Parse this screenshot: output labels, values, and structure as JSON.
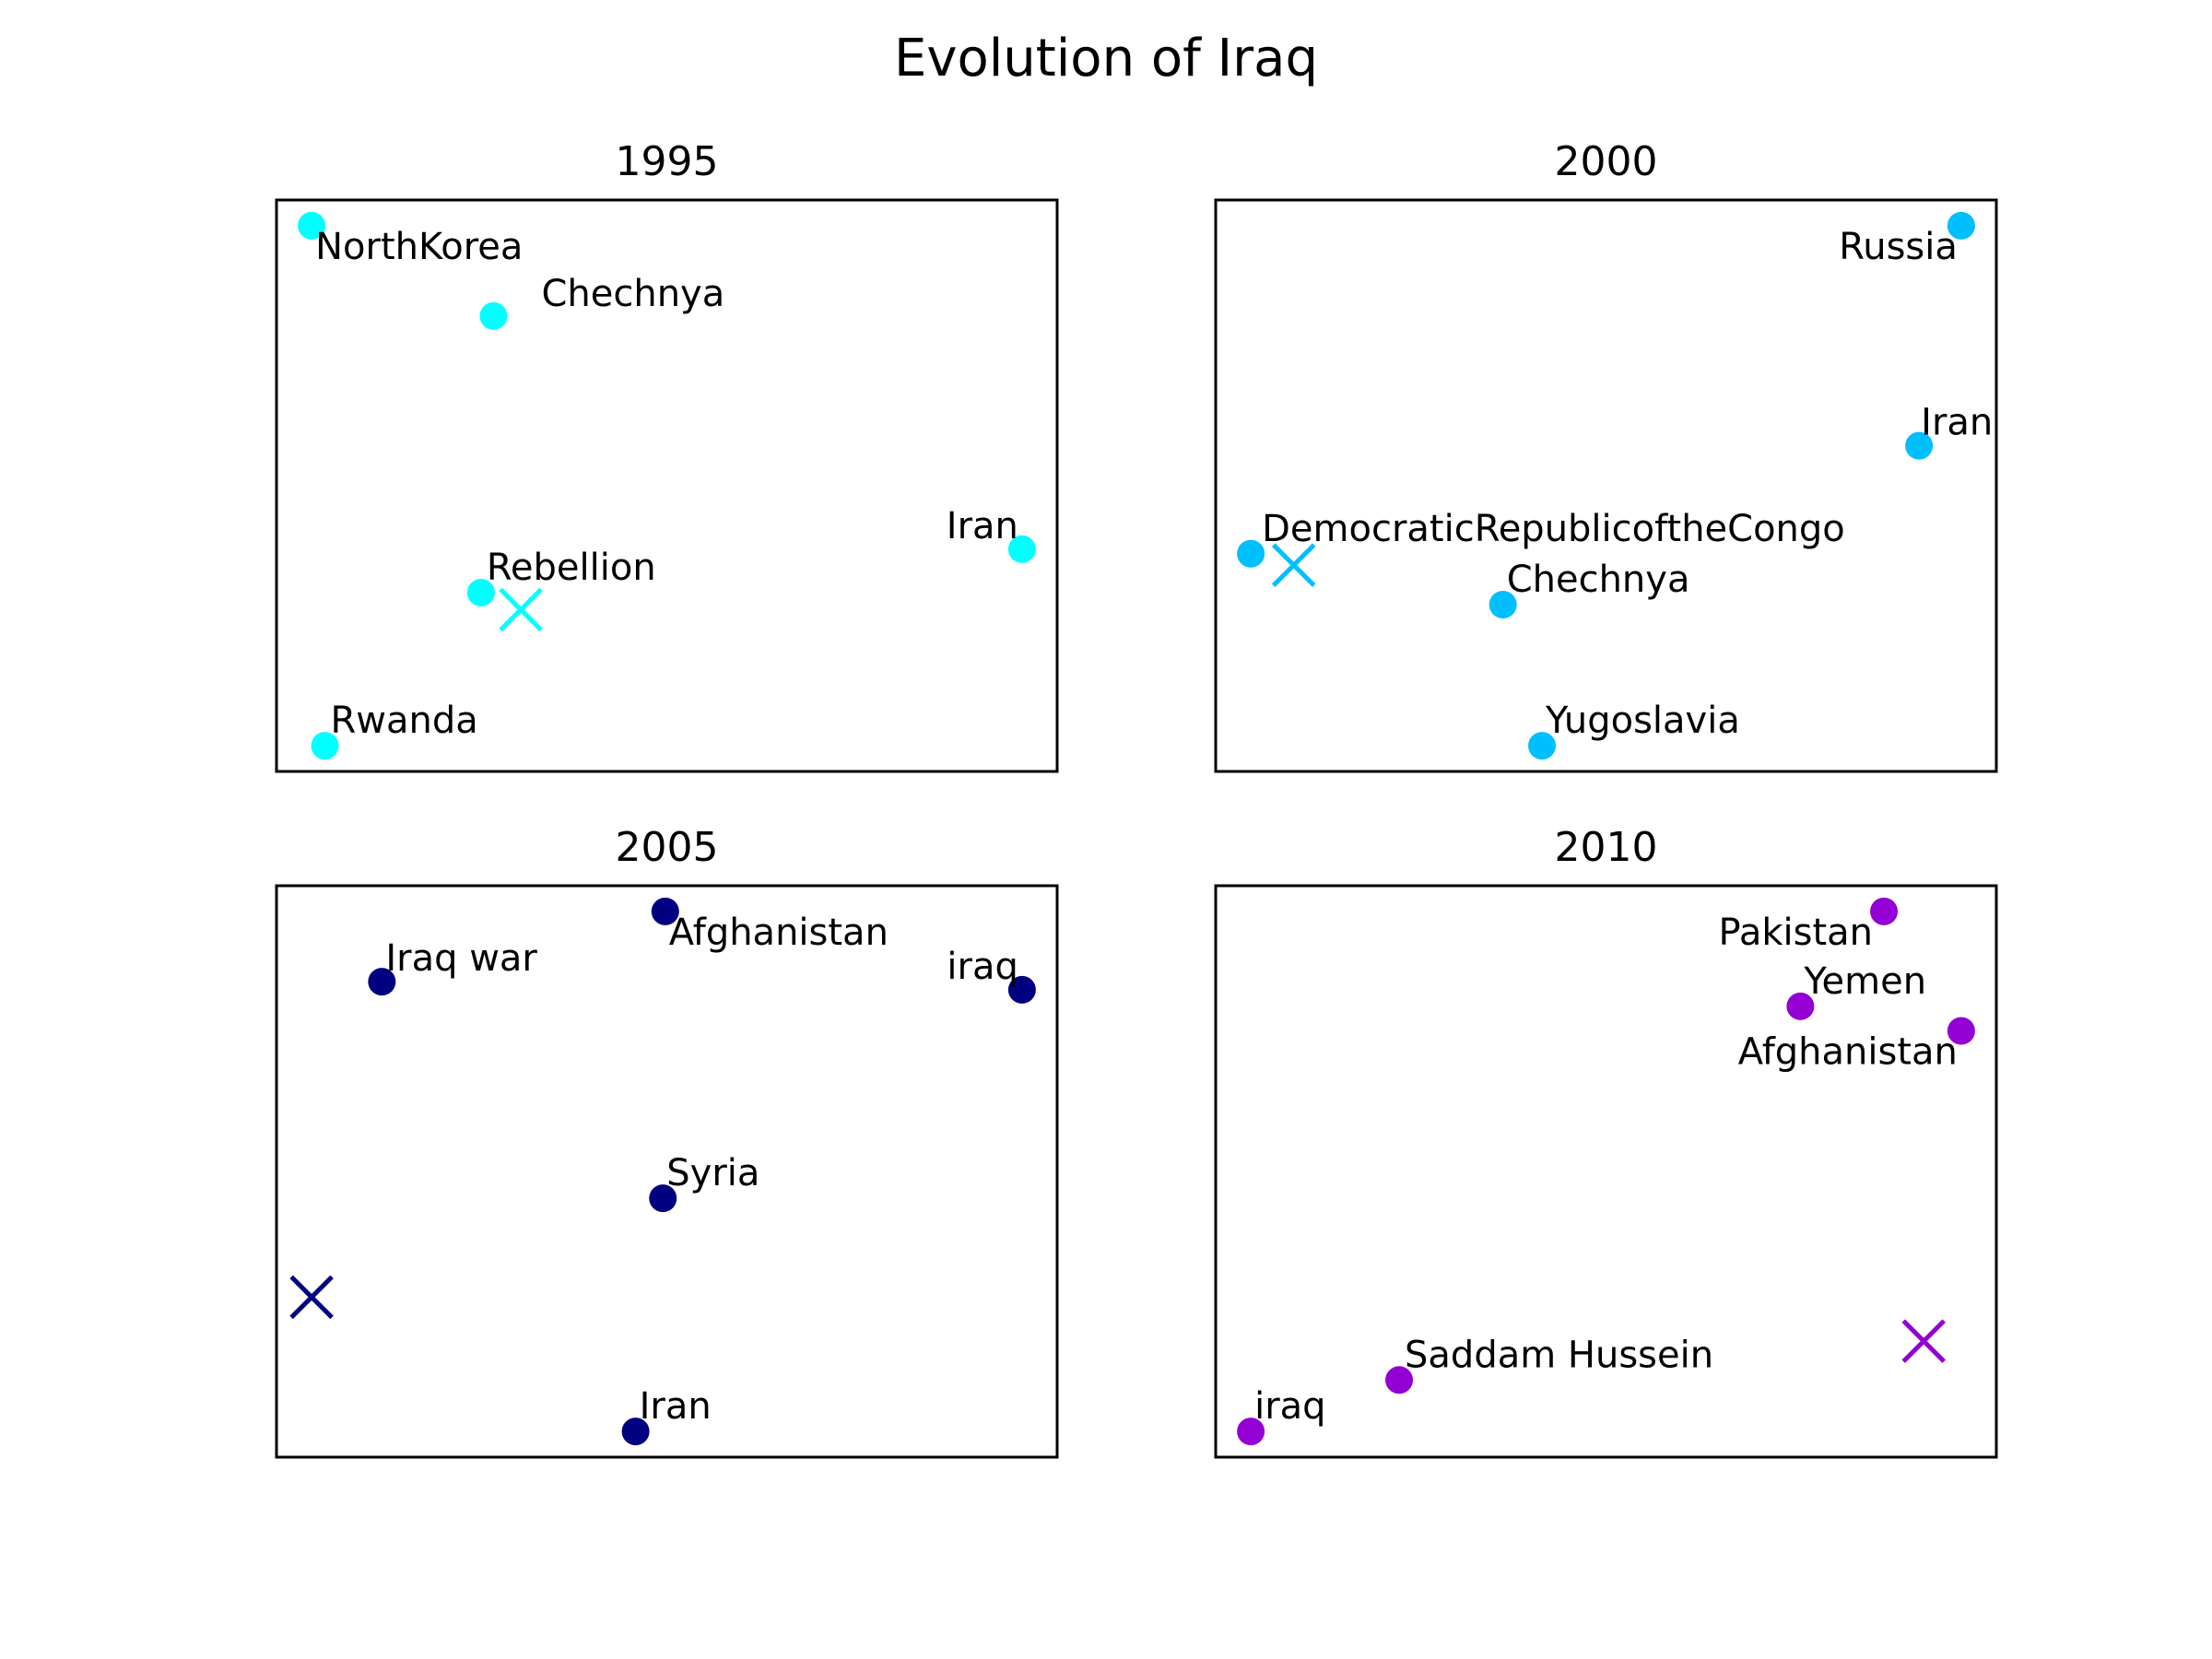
{
  "title": "Evolution of Iraq",
  "chart_data": [
    {
      "type": "scatter",
      "title": "1995",
      "color": "#00ffff",
      "xlim": [
        0,
        1
      ],
      "ylim": [
        0,
        1
      ],
      "points": [
        {
          "label": "NorthKorea",
          "x": 0.045,
          "y": 0.955
        },
        {
          "label": "Chechnya",
          "x": 0.278,
          "y": 0.797
        },
        {
          "label": "Iran",
          "x": 0.955,
          "y": 0.389
        },
        {
          "label": "Rebellion",
          "x": 0.262,
          "y": 0.313
        },
        {
          "label": "Rwanda",
          "x": 0.062,
          "y": 0.045
        }
      ],
      "marker": {
        "x": 0.313,
        "y": 0.283
      }
    },
    {
      "type": "scatter",
      "title": "2000",
      "color": "#00bfff",
      "xlim": [
        0,
        1
      ],
      "ylim": [
        0,
        1
      ],
      "points": [
        {
          "label": "Russia",
          "x": 0.955,
          "y": 0.955
        },
        {
          "label": "Iran",
          "x": 0.901,
          "y": 0.57
        },
        {
          "label": "DemocraticRepublicoftheCongo",
          "x": 0.045,
          "y": 0.381
        },
        {
          "label": "Chechnya",
          "x": 0.368,
          "y": 0.292
        },
        {
          "label": "Yugoslavia",
          "x": 0.418,
          "y": 0.045
        }
      ],
      "marker": {
        "x": 0.1,
        "y": 0.361
      }
    },
    {
      "type": "scatter",
      "title": "2005",
      "color": "#000080",
      "xlim": [
        0,
        1
      ],
      "ylim": [
        0,
        1
      ],
      "points": [
        {
          "label": "Afghanistan",
          "x": 0.498,
          "y": 0.955
        },
        {
          "label": "Iraq war",
          "x": 0.135,
          "y": 0.832
        },
        {
          "label": "iraq",
          "x": 0.955,
          "y": 0.818
        },
        {
          "label": "Syria",
          "x": 0.495,
          "y": 0.453
        },
        {
          "label": "Iran",
          "x": 0.46,
          "y": 0.045
        }
      ],
      "marker": {
        "x": 0.045,
        "y": 0.28
      }
    },
    {
      "type": "scatter",
      "title": "2010",
      "color": "#9400d3",
      "xlim": [
        0,
        1
      ],
      "ylim": [
        0,
        1
      ],
      "points": [
        {
          "label": "Pakistan",
          "x": 0.856,
          "y": 0.955
        },
        {
          "label": "Yemen",
          "x": 0.749,
          "y": 0.789
        },
        {
          "label": "Afghanistan",
          "x": 0.955,
          "y": 0.746
        },
        {
          "label": "Saddam Hussein",
          "x": 0.235,
          "y": 0.135
        },
        {
          "label": "iraq",
          "x": 0.045,
          "y": 0.045
        }
      ],
      "marker": {
        "x": 0.907,
        "y": 0.203
      }
    }
  ]
}
